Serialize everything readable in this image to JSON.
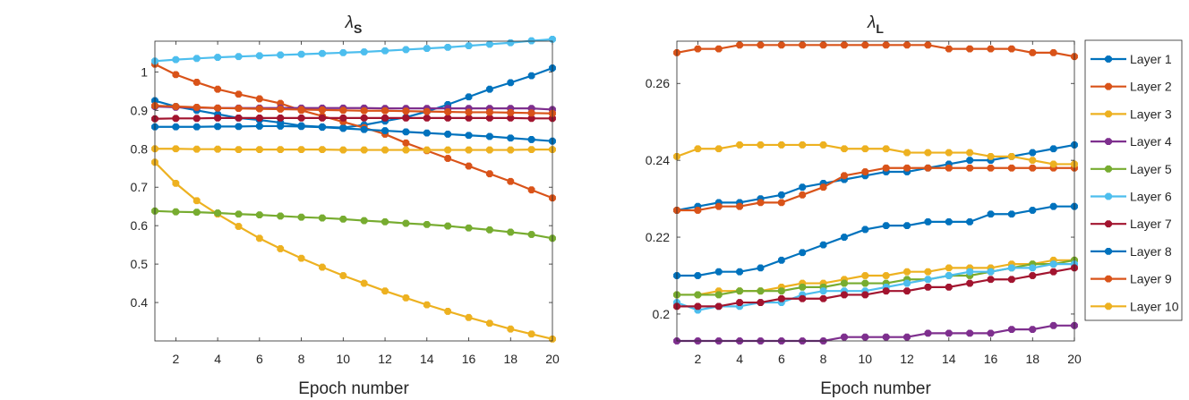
{
  "chart_data": [
    {
      "type": "line",
      "title": "λ",
      "title_subscript": "S",
      "xlabel": "Epoch number",
      "ylabel": "",
      "xlim": [
        1,
        20
      ],
      "ylim": [
        0.3,
        1.08
      ],
      "xticks": [
        2,
        4,
        6,
        8,
        10,
        12,
        14,
        16,
        18,
        20
      ],
      "yticks": [
        0.4,
        0.5,
        0.6,
        0.7,
        0.8,
        0.9,
        1
      ],
      "ytick_labels": [
        "0.4",
        "0.5",
        "0.6",
        "0.7",
        "0.8",
        "0.9",
        "1"
      ],
      "x": [
        1,
        2,
        3,
        4,
        5,
        6,
        7,
        8,
        9,
        10,
        11,
        12,
        13,
        14,
        15,
        16,
        17,
        18,
        19,
        20
      ],
      "series": [
        {
          "name": "Layer 1",
          "color": "#0072BD",
          "values": [
            0.925,
            0.91,
            0.9,
            0.89,
            0.88,
            0.875,
            0.868,
            0.86,
            0.857,
            0.855,
            0.862,
            0.872,
            0.882,
            0.897,
            0.915,
            0.935,
            0.955,
            0.972,
            0.99,
            1.01
          ]
        },
        {
          "name": "Layer 2",
          "color": "#D95319",
          "values": [
            1.02,
            0.993,
            0.973,
            0.955,
            0.942,
            0.93,
            0.918,
            0.9,
            0.885,
            0.87,
            0.855,
            0.838,
            0.815,
            0.795,
            0.775,
            0.755,
            0.735,
            0.715,
            0.693,
            0.672
          ]
        },
        {
          "name": "Layer 3",
          "color": "#EDB120",
          "values": [
            0.765,
            0.71,
            0.665,
            0.63,
            0.598,
            0.567,
            0.54,
            0.515,
            0.492,
            0.47,
            0.45,
            0.43,
            0.412,
            0.394,
            0.377,
            0.361,
            0.346,
            0.331,
            0.318,
            0.305
          ]
        },
        {
          "name": "Layer 4",
          "color": "#7E2F8E",
          "values": [
            0.91,
            0.908,
            0.907,
            0.906,
            0.906,
            0.906,
            0.906,
            0.906,
            0.906,
            0.906,
            0.906,
            0.905,
            0.905,
            0.905,
            0.905,
            0.905,
            0.905,
            0.905,
            0.905,
            0.902
          ]
        },
        {
          "name": "Layer 5",
          "color": "#77AC30",
          "values": [
            0.638,
            0.636,
            0.635,
            0.633,
            0.63,
            0.628,
            0.625,
            0.622,
            0.62,
            0.617,
            0.613,
            0.61,
            0.606,
            0.603,
            0.599,
            0.594,
            0.589,
            0.583,
            0.577,
            0.567
          ]
        },
        {
          "name": "Layer 6",
          "color": "#4DBEEE",
          "values": [
            1.028,
            1.032,
            1.035,
            1.038,
            1.04,
            1.042,
            1.044,
            1.046,
            1.048,
            1.05,
            1.052,
            1.055,
            1.058,
            1.061,
            1.064,
            1.068,
            1.072,
            1.076,
            1.081,
            1.085
          ]
        },
        {
          "name": "Layer 7",
          "color": "#A2142F",
          "values": [
            0.878,
            0.879,
            0.879,
            0.88,
            0.88,
            0.88,
            0.88,
            0.88,
            0.88,
            0.88,
            0.88,
            0.88,
            0.88,
            0.88,
            0.88,
            0.88,
            0.88,
            0.88,
            0.879,
            0.879
          ]
        },
        {
          "name": "Layer 8",
          "color": "#0072BD",
          "values": [
            0.857,
            0.857,
            0.857,
            0.858,
            0.858,
            0.859,
            0.859,
            0.858,
            0.856,
            0.853,
            0.85,
            0.847,
            0.844,
            0.841,
            0.838,
            0.835,
            0.832,
            0.828,
            0.824,
            0.82
          ]
        },
        {
          "name": "Layer 9",
          "color": "#D95319",
          "values": [
            0.912,
            0.91,
            0.908,
            0.906,
            0.905,
            0.904,
            0.903,
            0.902,
            0.901,
            0.9,
            0.899,
            0.899,
            0.898,
            0.897,
            0.896,
            0.895,
            0.895,
            0.894,
            0.893,
            0.892
          ]
        },
        {
          "name": "Layer 10",
          "color": "#EDB120",
          "values": [
            0.8,
            0.8,
            0.799,
            0.799,
            0.798,
            0.798,
            0.798,
            0.798,
            0.798,
            0.797,
            0.797,
            0.797,
            0.797,
            0.797,
            0.797,
            0.797,
            0.797,
            0.797,
            0.798,
            0.798
          ]
        }
      ]
    },
    {
      "type": "line",
      "title": "λ",
      "title_subscript": "L",
      "xlabel": "Epoch number",
      "ylabel": "",
      "xlim": [
        1,
        20
      ],
      "ylim": [
        0.193,
        0.271
      ],
      "xticks": [
        2,
        4,
        6,
        8,
        10,
        12,
        14,
        16,
        18,
        20
      ],
      "yticks": [
        0.2,
        0.22,
        0.24,
        0.26
      ],
      "ytick_labels": [
        "0.2",
        "0.22",
        "0.24",
        "0.26"
      ],
      "x": [
        1,
        2,
        3,
        4,
        5,
        6,
        7,
        8,
        9,
        10,
        11,
        12,
        13,
        14,
        15,
        16,
        17,
        18,
        19,
        20
      ],
      "legend_position": "outside-right",
      "series": [
        {
          "name": "Layer 1",
          "color": "#0072BD",
          "values": [
            0.227,
            0.228,
            0.229,
            0.229,
            0.23,
            0.231,
            0.233,
            0.234,
            0.235,
            0.236,
            0.237,
            0.237,
            0.238,
            0.239,
            0.24,
            0.24,
            0.241,
            0.242,
            0.243,
            0.244
          ]
        },
        {
          "name": "Layer 2",
          "color": "#D95319",
          "values": [
            0.227,
            0.227,
            0.228,
            0.228,
            0.229,
            0.229,
            0.231,
            0.233,
            0.236,
            0.237,
            0.238,
            0.238,
            0.238,
            0.238,
            0.238,
            0.238,
            0.238,
            0.238,
            0.238,
            0.238
          ]
        },
        {
          "name": "Layer 3",
          "color": "#EDB120",
          "values": [
            0.205,
            0.205,
            0.206,
            0.206,
            0.206,
            0.207,
            0.208,
            0.208,
            0.209,
            0.21,
            0.21,
            0.211,
            0.211,
            0.212,
            0.212,
            0.212,
            0.213,
            0.213,
            0.214,
            0.214
          ]
        },
        {
          "name": "Layer 4",
          "color": "#7E2F8E",
          "values": [
            0.193,
            0.193,
            0.193,
            0.193,
            0.193,
            0.193,
            0.193,
            0.193,
            0.194,
            0.194,
            0.194,
            0.194,
            0.195,
            0.195,
            0.195,
            0.195,
            0.196,
            0.196,
            0.197,
            0.197
          ]
        },
        {
          "name": "Layer 5",
          "color": "#77AC30",
          "values": [
            0.205,
            0.205,
            0.205,
            0.206,
            0.206,
            0.206,
            0.207,
            0.207,
            0.208,
            0.208,
            0.208,
            0.209,
            0.209,
            0.21,
            0.21,
            0.211,
            0.212,
            0.213,
            0.213,
            0.214
          ]
        },
        {
          "name": "Layer 6",
          "color": "#4DBEEE",
          "values": [
            0.203,
            0.201,
            0.202,
            0.202,
            0.203,
            0.203,
            0.205,
            0.206,
            0.206,
            0.206,
            0.207,
            0.208,
            0.209,
            0.21,
            0.211,
            0.211,
            0.212,
            0.212,
            0.213,
            0.213
          ]
        },
        {
          "name": "Layer 7",
          "color": "#A2142F",
          "values": [
            0.202,
            0.202,
            0.202,
            0.203,
            0.203,
            0.204,
            0.204,
            0.204,
            0.205,
            0.205,
            0.206,
            0.206,
            0.207,
            0.207,
            0.208,
            0.209,
            0.209,
            0.21,
            0.211,
            0.212
          ]
        },
        {
          "name": "Layer 8",
          "color": "#0072BD",
          "values": [
            0.21,
            0.21,
            0.211,
            0.211,
            0.212,
            0.214,
            0.216,
            0.218,
            0.22,
            0.222,
            0.223,
            0.223,
            0.224,
            0.224,
            0.224,
            0.226,
            0.226,
            0.227,
            0.228,
            0.228
          ]
        },
        {
          "name": "Layer 9",
          "color": "#D95319",
          "values": [
            0.268,
            0.269,
            0.269,
            0.27,
            0.27,
            0.27,
            0.27,
            0.27,
            0.27,
            0.27,
            0.27,
            0.27,
            0.27,
            0.269,
            0.269,
            0.269,
            0.269,
            0.268,
            0.268,
            0.267
          ]
        },
        {
          "name": "Layer 10",
          "color": "#EDB120",
          "values": [
            0.241,
            0.243,
            0.243,
            0.244,
            0.244,
            0.244,
            0.244,
            0.244,
            0.243,
            0.243,
            0.243,
            0.242,
            0.242,
            0.242,
            0.242,
            0.241,
            0.241,
            0.24,
            0.239,
            0.239
          ]
        }
      ]
    }
  ]
}
